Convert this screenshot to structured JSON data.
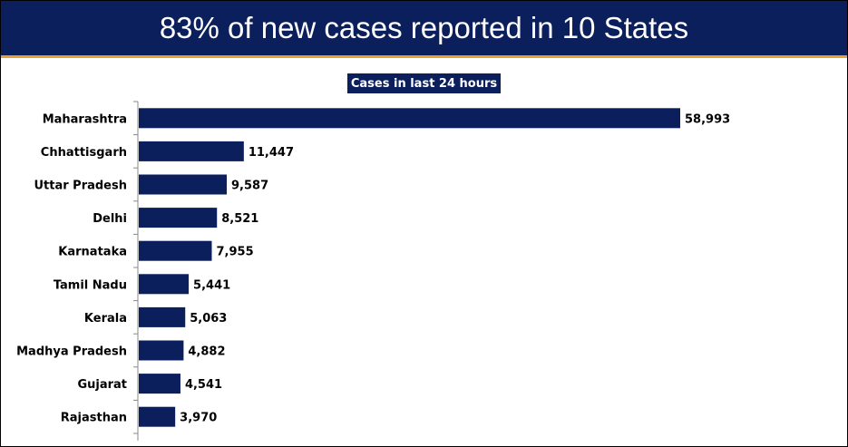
{
  "header": {
    "title": "83% of new cases reported in 10 States"
  },
  "colors": {
    "bar": "#0b1f5c",
    "header_bg": "#0b1f5c",
    "accent": "#e8a030"
  },
  "chart_data": {
    "type": "bar",
    "orientation": "horizontal",
    "title": "Cases in last 24 hours",
    "categories": [
      "Maharashtra",
      "Chhattisgarh",
      "Uttar Pradesh",
      "Delhi",
      "Karnataka",
      "Tamil Nadu",
      "Kerala",
      "Madhya Pradesh",
      "Gujarat",
      "Rajasthan"
    ],
    "values": [
      58993,
      11447,
      9587,
      8521,
      7955,
      5441,
      5063,
      4882,
      4541,
      3970
    ],
    "value_labels": [
      "58,993",
      "11,447",
      "9,587",
      "8,521",
      "7,955",
      "5,441",
      "5,063",
      "4,882",
      "4,541",
      "3,970"
    ],
    "xlim": [
      0,
      60000
    ],
    "grid": false,
    "legend": "none"
  }
}
